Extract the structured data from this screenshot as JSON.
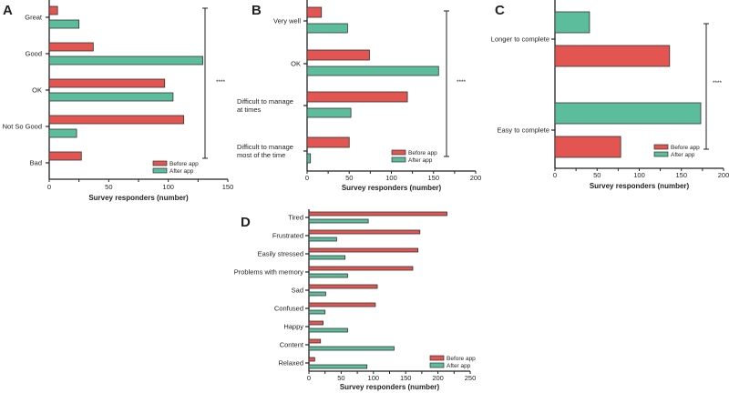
{
  "colors": {
    "before": "#e25550",
    "after": "#5bbd9c",
    "axis": "#222222"
  },
  "chart_data": [
    {
      "panel": "A",
      "type": "bar",
      "orientation": "horizontal",
      "categories": [
        "Great",
        "Good",
        "OK",
        "Not So Good",
        "Bad"
      ],
      "series": [
        {
          "name": "Before app",
          "values": [
            7,
            37,
            97,
            113,
            27
          ]
        },
        {
          "name": "After app",
          "values": [
            25,
            129,
            104,
            23,
            0
          ]
        }
      ],
      "xlabel": "Survey responders (number)",
      "xlim": [
        0,
        150
      ],
      "ticks": [
        "0",
        "50",
        "100",
        "150"
      ],
      "significance": "****",
      "legend": "bottom-right"
    },
    {
      "panel": "B",
      "type": "bar",
      "orientation": "horizontal",
      "categories": [
        "Very well",
        "OK",
        "Difficult to manage\nat times",
        "Difficult to manage\nmost of the time"
      ],
      "series": [
        {
          "name": "Before app",
          "values": [
            17,
            74,
            119,
            50
          ]
        },
        {
          "name": "After app",
          "values": [
            48,
            156,
            52,
            4
          ]
        }
      ],
      "xlabel": "Survey responders (number)",
      "xlim": [
        0,
        200
      ],
      "ticks": [
        "0",
        "50",
        "100",
        "150",
        "200"
      ],
      "significance": "****",
      "legend": "bottom-right"
    },
    {
      "panel": "C",
      "type": "bar",
      "orientation": "horizontal",
      "categories": [
        "Longer to complete",
        "Easy to complete"
      ],
      "series": [
        {
          "name": "Before app",
          "values": [
            136,
            78
          ]
        },
        {
          "name": "After app",
          "values": [
            41,
            173
          ]
        }
      ],
      "xlabel": "Survey responders (number)",
      "xlim": [
        0,
        200
      ],
      "ticks": [
        "0",
        "50",
        "100",
        "150",
        "200"
      ],
      "significance": "****",
      "legend": "bottom-right"
    },
    {
      "panel": "D",
      "type": "bar",
      "orientation": "horizontal",
      "categories": [
        "Tired",
        "Frustrated",
        "Easily stressed",
        "Problems with memory",
        "Sad",
        "Confused",
        "Happy",
        "Content",
        "Relaxed"
      ],
      "series": [
        {
          "name": "Before app",
          "values": [
            214,
            172,
            169,
            161,
            106,
            103,
            22,
            18,
            9
          ]
        },
        {
          "name": "After app",
          "values": [
            92,
            43,
            56,
            60,
            26,
            25,
            60,
            132,
            90
          ]
        }
      ],
      "xlabel": "Survey responders (number)",
      "xlim": [
        0,
        250
      ],
      "ticks": [
        "0",
        "50",
        "100",
        "150",
        "200",
        "250"
      ],
      "significance": "",
      "legend": "bottom-right"
    }
  ]
}
